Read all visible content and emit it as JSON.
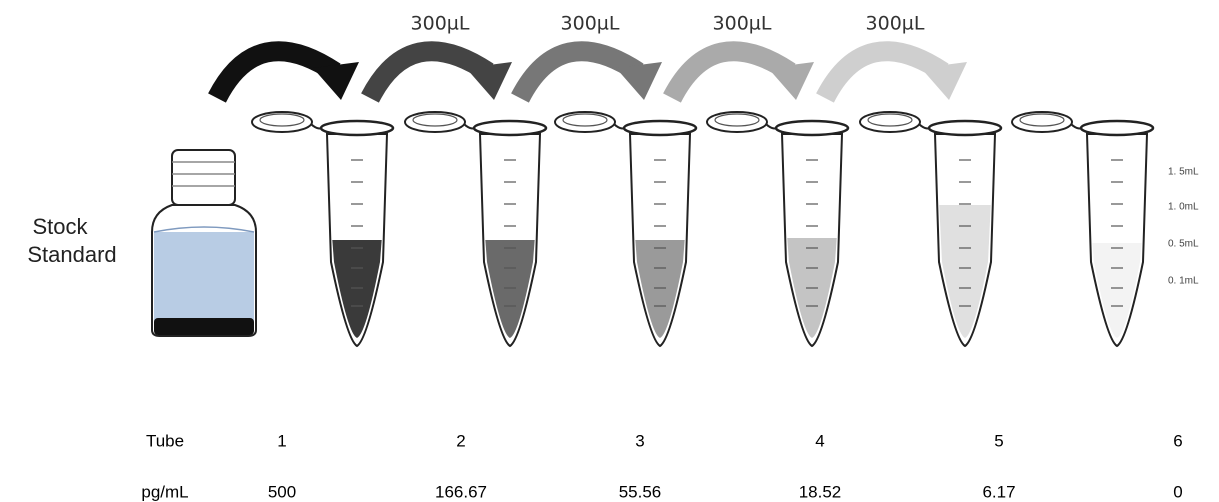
{
  "stock_label": [
    "Stock",
    "Standard"
  ],
  "transfers": [
    "300µL",
    "300µL",
    "300µL",
    "300µL"
  ],
  "scale_labels": [
    "1. 5mL",
    "1. 0mL",
    "0. 5mL",
    "0. 1mL"
  ],
  "table": {
    "row_headers": [
      "Tube",
      "pg/mL"
    ],
    "tubes": [
      1,
      2,
      3,
      4,
      5,
      6
    ],
    "concentrations": [
      500,
      166.67,
      55.56,
      18.52,
      6.17,
      0
    ]
  }
}
